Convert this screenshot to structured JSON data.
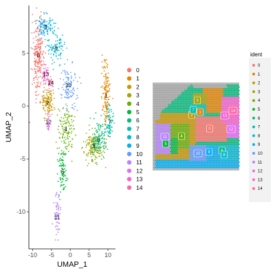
{
  "chart_data": [
    {
      "type": "scatter",
      "title": "",
      "xlabel": "UMAP_1",
      "ylabel": "UMAP_2",
      "xlim": [
        -11,
        12
      ],
      "ylim": [
        -13.5,
        9.5
      ],
      "xticks": [
        "-10",
        "-5",
        "0",
        "5",
        "10"
      ],
      "yticks": [
        "5",
        "0",
        "-5",
        "-10"
      ],
      "legend_position": "right",
      "clusters": [
        {
          "id": "0",
          "color": "#F8766D",
          "center": [
            -8.5,
            4.8
          ]
        },
        {
          "id": "1",
          "color": "#E58700",
          "center": [
            9.5,
            1.0
          ]
        },
        {
          "id": "2",
          "color": "#C99800",
          "center": [
            -6.0,
            0.3
          ]
        },
        {
          "id": "3",
          "color": "#A3A500",
          "center": [
            6.2,
            -3.8
          ]
        },
        {
          "id": "4",
          "color": "#6BB100",
          "center": [
            -1.2,
            -2.2
          ]
        },
        {
          "id": "5",
          "color": "#00BA38",
          "center": [
            -2.0,
            -6.2
          ]
        },
        {
          "id": "6",
          "color": "#00BF7D",
          "center": [
            7.5,
            -3.2
          ]
        },
        {
          "id": "7",
          "color": "#00C0AF",
          "center": [
            10.5,
            -1.5
          ]
        },
        {
          "id": "8",
          "color": "#00BCD8",
          "center": [
            -3.8,
            5.5
          ]
        },
        {
          "id": "9",
          "color": "#00B0F6",
          "center": [
            -6.5,
            7.5
          ]
        },
        {
          "id": "10",
          "color": "#619CFF",
          "center": [
            -0.5,
            2.0
          ]
        },
        {
          "id": "11",
          "color": "#B983FF",
          "center": [
            -3.5,
            -10.5
          ]
        },
        {
          "id": "12",
          "color": "#E76BF3",
          "center": [
            -5.8,
            -1.5
          ]
        },
        {
          "id": "13",
          "color": "#FD61D1",
          "center": [
            -6.5,
            3.0
          ]
        },
        {
          "id": "14",
          "color": "#FF67A4",
          "center": [
            -5.2,
            2.2
          ]
        }
      ]
    },
    {
      "type": "scatter",
      "title": "",
      "legend_title": "ident",
      "legend_entries": [
        "0",
        "1",
        "2",
        "3",
        "4",
        "5",
        "6",
        "7",
        "8",
        "9",
        "10",
        "11",
        "12",
        "13",
        "14"
      ],
      "spot_labels": [
        "0",
        "1",
        "2",
        "3",
        "4",
        "5",
        "6",
        "7",
        "8",
        "9",
        "10",
        "11",
        "12",
        "13",
        "14"
      ]
    }
  ],
  "legend": {
    "items": [
      "0",
      "1",
      "2",
      "3",
      "4",
      "5",
      "6",
      "7",
      "8",
      "9",
      "10",
      "11",
      "12",
      "13",
      "14"
    ]
  },
  "colors": [
    "#F8766D",
    "#E58700",
    "#C99800",
    "#A3A500",
    "#6BB100",
    "#00BA38",
    "#00BF7D",
    "#00C0AF",
    "#00BCD8",
    "#00B0F6",
    "#619CFF",
    "#B983FF",
    "#E76BF3",
    "#FD61D1",
    "#FF67A4"
  ]
}
